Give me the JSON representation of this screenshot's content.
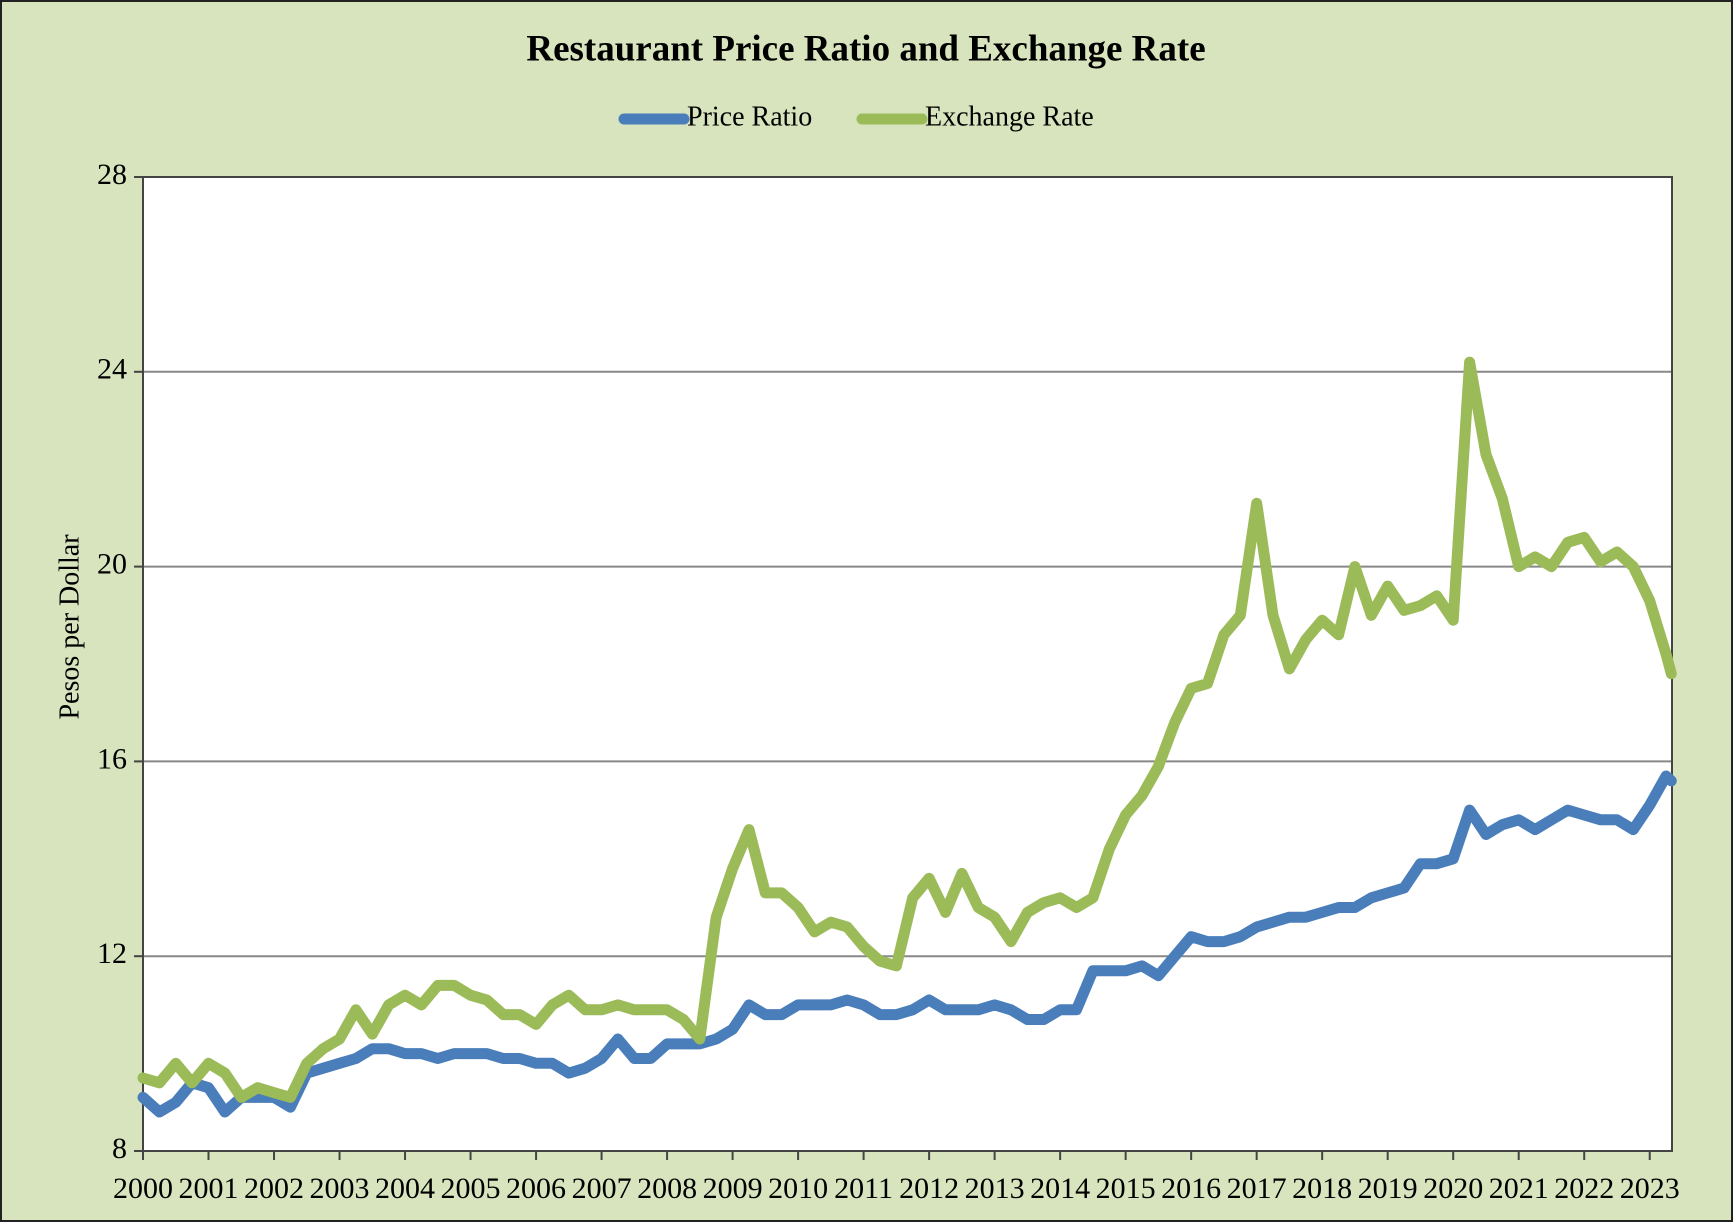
{
  "chart_data": {
    "type": "line",
    "title": "Restaurant Price Ratio and Exchange Rate",
    "y_label": "Pesos per Dollar",
    "x": [
      2000,
      2000.25,
      2000.5,
      2000.75,
      2001,
      2001.25,
      2001.5,
      2001.75,
      2002,
      2002.25,
      2002.5,
      2002.75,
      2003,
      2003.25,
      2003.5,
      2003.75,
      2004,
      2004.25,
      2004.5,
      2004.75,
      2005,
      2005.25,
      2005.5,
      2005.75,
      2006,
      2006.25,
      2006.5,
      2006.75,
      2007,
      2007.25,
      2007.5,
      2007.75,
      2008,
      2008.25,
      2008.5,
      2008.75,
      2009,
      2009.25,
      2009.5,
      2009.75,
      2010,
      2010.25,
      2010.5,
      2010.75,
      2011,
      2011.25,
      2011.5,
      2011.75,
      2012,
      2012.25,
      2012.5,
      2012.75,
      2013,
      2013.25,
      2013.5,
      2013.75,
      2014,
      2014.25,
      2014.5,
      2014.75,
      2015,
      2015.25,
      2015.5,
      2015.75,
      2016,
      2016.25,
      2016.5,
      2016.75,
      2017,
      2017.25,
      2017.5,
      2017.75,
      2018,
      2018.25,
      2018.5,
      2018.75,
      2019,
      2019.25,
      2019.5,
      2019.75,
      2020,
      2020.25,
      2020.5,
      2020.75,
      2021,
      2021.25,
      2021.5,
      2021.75,
      2022,
      2022.25,
      2022.5,
      2022.75,
      2023,
      2023.25,
      2023.33
    ],
    "series": [
      {
        "name": "Price Ratio",
        "color": "#4a7ebb",
        "values": [
          9.1,
          8.8,
          9.0,
          9.4,
          9.3,
          8.8,
          9.1,
          9.1,
          9.1,
          8.9,
          9.6,
          9.7,
          9.8,
          9.9,
          10.1,
          10.1,
          10.0,
          10.0,
          9.9,
          10.0,
          10.0,
          10.0,
          9.9,
          9.9,
          9.8,
          9.8,
          9.6,
          9.7,
          9.9,
          10.3,
          9.9,
          9.9,
          10.2,
          10.2,
          10.2,
          10.3,
          10.5,
          11.0,
          10.8,
          10.8,
          11.0,
          11.0,
          11.0,
          11.1,
          11.0,
          10.8,
          10.8,
          10.9,
          11.1,
          10.9,
          10.9,
          10.9,
          11.0,
          10.9,
          10.7,
          10.7,
          10.9,
          10.9,
          11.7,
          11.7,
          11.7,
          11.8,
          11.6,
          12.0,
          12.4,
          12.3,
          12.3,
          12.4,
          12.6,
          12.7,
          12.8,
          12.8,
          12.9,
          13.0,
          13.0,
          13.2,
          13.3,
          13.4,
          13.9,
          13.9,
          14.0,
          15.0,
          14.5,
          14.7,
          14.8,
          14.6,
          14.8,
          15.0,
          14.9,
          14.8,
          14.8,
          14.6,
          15.1,
          15.7,
          15.6
        ]
      },
      {
        "name": "Exchange Rate",
        "color": "#9bbb59",
        "values": [
          9.5,
          9.4,
          9.8,
          9.4,
          9.8,
          9.6,
          9.1,
          9.3,
          9.2,
          9.1,
          9.8,
          10.1,
          10.3,
          10.9,
          10.4,
          11.0,
          11.2,
          11.0,
          11.4,
          11.4,
          11.2,
          11.1,
          10.8,
          10.8,
          10.6,
          11.0,
          11.2,
          10.9,
          10.9,
          11.0,
          10.9,
          10.9,
          10.9,
          10.7,
          10.3,
          12.8,
          13.8,
          14.6,
          13.3,
          13.3,
          13.0,
          12.5,
          12.7,
          12.6,
          12.2,
          11.9,
          11.8,
          13.2,
          13.6,
          12.9,
          13.7,
          13.0,
          12.8,
          12.3,
          12.9,
          13.1,
          13.2,
          13.0,
          13.2,
          14.2,
          14.9,
          15.3,
          15.9,
          16.8,
          17.5,
          17.6,
          18.6,
          19.0,
          21.3,
          19.0,
          17.9,
          18.5,
          18.9,
          18.6,
          20.0,
          19.0,
          19.6,
          19.1,
          19.2,
          19.4,
          18.9,
          24.2,
          22.3,
          21.4,
          20.0,
          20.2,
          20.0,
          20.5,
          20.6,
          20.1,
          20.3,
          20.0,
          19.3,
          18.2,
          17.8
        ]
      }
    ],
    "xlim": [
      2000,
      2023.34
    ],
    "xticks": [
      2000,
      2001,
      2002,
      2003,
      2004,
      2005,
      2006,
      2007,
      2008,
      2009,
      2010,
      2011,
      2012,
      2013,
      2014,
      2015,
      2016,
      2017,
      2018,
      2019,
      2020,
      2021,
      2022,
      2023
    ],
    "ylim": [
      8,
      28
    ],
    "yticks": [
      8,
      12,
      16,
      20,
      24,
      28
    ],
    "grid": true,
    "legend": "top"
  }
}
